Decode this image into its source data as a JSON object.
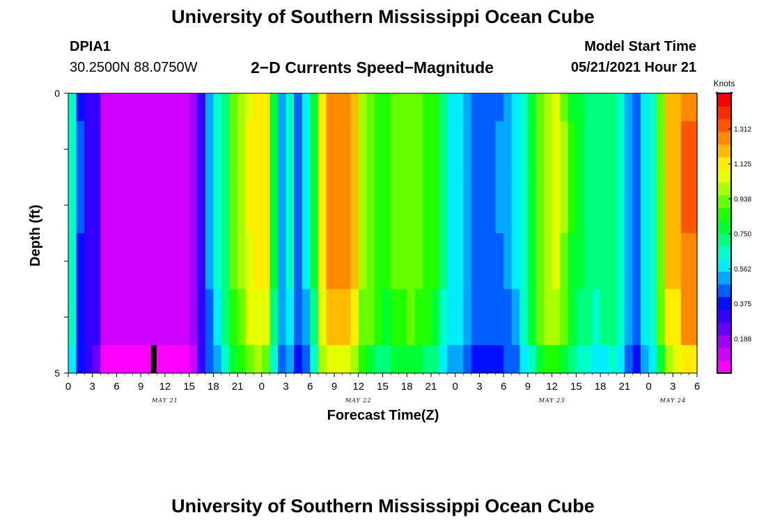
{
  "page": {
    "title_top": "University of Southern Mississippi Ocean Cube",
    "title_bottom": "University of Southern Mississippi Ocean Cube",
    "station_id": "DPIA1",
    "coordinates": "30.2500N  88.0750W",
    "plot_title": "2−D Currents Speed−Magnitude",
    "model_start_label": "Model Start Time",
    "model_start_value": "05/21/2021 Hour 21"
  },
  "chart_data": {
    "type": "heatmap",
    "title": "2−D Currents Speed−Magnitude",
    "xlabel": "Forecast Time(Z)",
    "ylabel": "Depth (ft)",
    "ylim": [
      0,
      5
    ],
    "y_ticks": [
      {
        "value": 0,
        "label": "0"
      },
      {
        "value": 5,
        "label": "5"
      }
    ],
    "x_tick_labels": [
      "0",
      "3",
      "6",
      "9",
      "12",
      "15",
      "18",
      "21",
      "0",
      "3",
      "6",
      "9",
      "12",
      "15",
      "18",
      "21",
      "0",
      "3",
      "6",
      "9",
      "12",
      "15",
      "18",
      "21",
      "0",
      "3",
      "6"
    ],
    "day_labels": [
      {
        "label": "MAY 21",
        "hour": 12
      },
      {
        "label": "MAY 22",
        "hour": 36
      },
      {
        "label": "MAY 23",
        "hour": 60
      },
      {
        "label": "MAY 24",
        "hour": 75
      }
    ],
    "x_range_hours": [
      0,
      78
    ],
    "time_step_hours": 1,
    "depth_layer_boundaries_ft": [
      0,
      0.5,
      1.5,
      2.5,
      3.5,
      4.5,
      5
    ],
    "row_scale": [
      0.99,
      1.0,
      1.0,
      0.99,
      0.95,
      0.85
    ],
    "surface_speed_knots": [
      0.66,
      0.41,
      0.33,
      0.3,
      0.08,
      0.08,
      0.08,
      0.08,
      0.08,
      0.08,
      0.08,
      0.08,
      0.08,
      0.08,
      0.08,
      0.15,
      0.33,
      0.5,
      0.62,
      0.74,
      0.9,
      0.98,
      1.1,
      1.14,
      1.12,
      0.76,
      0.54,
      0.63,
      0.46,
      0.56,
      0.76,
      1.14,
      1.24,
      1.28,
      1.26,
      1.2,
      1.0,
      0.94,
      0.88,
      0.86,
      0.92,
      0.93,
      0.94,
      0.92,
      0.88,
      0.84,
      0.7,
      0.61,
      0.59,
      0.52,
      0.47,
      0.46,
      0.46,
      0.48,
      0.5,
      0.56,
      0.65,
      0.8,
      0.94,
      1.01,
      1.04,
      0.96,
      0.82,
      0.76,
      0.73,
      0.71,
      0.72,
      0.74,
      0.66,
      0.53,
      0.45,
      0.6,
      0.66,
      0.95,
      1.18,
      1.22,
      1.3,
      1.3
    ],
    "colorbar": {
      "title": "Knots",
      "range": [
        0,
        1.5
      ],
      "ticks": [
        "0.188",
        "0.375",
        "0.562",
        "0.750",
        "0.938",
        "1.125",
        "1.312"
      ],
      "palette": [
        "#ff00ff",
        "#cf00ff",
        "#9f00ff",
        "#6a00ff",
        "#3300ff",
        "#0010ff",
        "#0060ff",
        "#00a8ff",
        "#00ecff",
        "#00ffc8",
        "#00ff7a",
        "#00ff30",
        "#20ff00",
        "#66ff00",
        "#a8ff00",
        "#e6ff00",
        "#ffee00",
        "#ffbb00",
        "#ff8a00",
        "#ff5400",
        "#ff2a00",
        "#ff0000"
      ]
    },
    "marker": {
      "hour": 10,
      "depth_from_ft": 4.5,
      "depth_to_ft": 5
    }
  }
}
